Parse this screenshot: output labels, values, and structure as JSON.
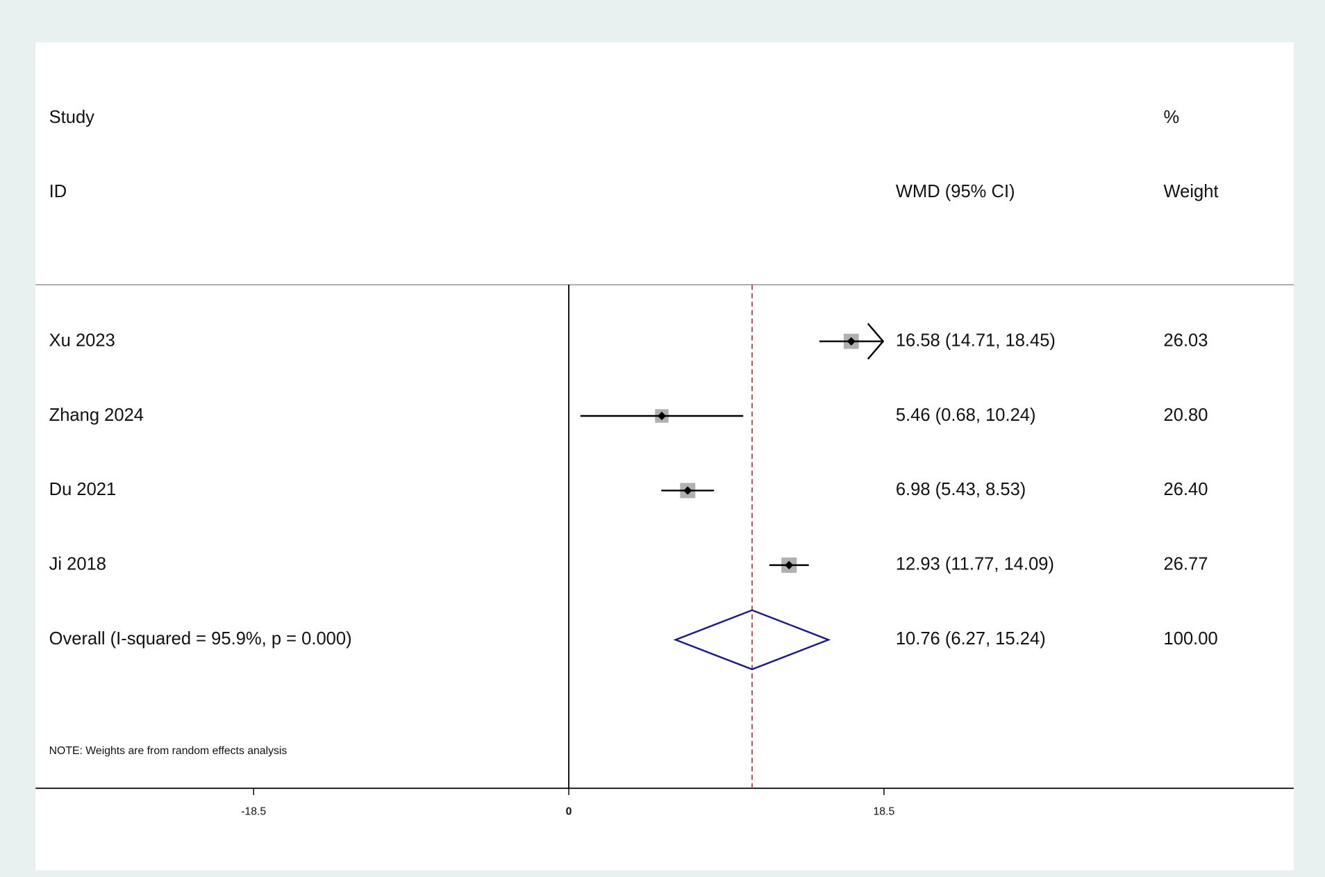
{
  "chart_data": {
    "type": "forest",
    "headers": {
      "study": "Study",
      "id": "ID",
      "effect": "WMD (95% CI)",
      "percent": "%",
      "weight": "Weight"
    },
    "categories": [
      "Xu 2023",
      "Zhang 2024",
      "Du 2021",
      "Ji 2018"
    ],
    "estimates": [
      16.58,
      5.46,
      6.98,
      12.93
    ],
    "lower": [
      14.71,
      0.68,
      5.43,
      11.77
    ],
    "upper": [
      18.45,
      10.24,
      8.53,
      14.09
    ],
    "value_labels": [
      "16.58 (14.71, 18.45)",
      "5.46 (0.68, 10.24)",
      "6.98 (5.43, 8.53)",
      "12.93 (11.77, 14.09)"
    ],
    "weights": [
      26.03,
      20.8,
      26.4,
      26.77
    ],
    "weight_labels": [
      "26.03",
      "20.80",
      "26.40",
      "26.77"
    ],
    "overall": {
      "label": "Overall  (I-squared = 95.9%, p = 0.000)",
      "estimate": 10.76,
      "lower": 6.27,
      "upper": 15.24,
      "value_label": "10.76 (6.27, 15.24)",
      "weight": 100,
      "weight_label": "100.00"
    },
    "note": "NOTE: Weights are from random effects analysis",
    "xlim": [
      -31.3,
      42.55
    ],
    "xticks": [
      -18.5,
      0,
      18.5
    ],
    "marker_color": "#b0b0b0",
    "diamond_color": "#1a1a80",
    "reference_color": "#b04848"
  }
}
